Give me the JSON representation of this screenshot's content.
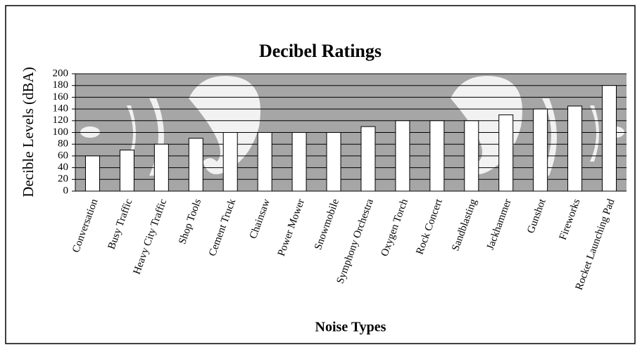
{
  "chart_data": {
    "type": "bar",
    "title": "Decibel Ratings",
    "x_label": "Noise Types",
    "y_label": "Decible Levels (dBA)",
    "categories": [
      "Conversation",
      "Busy Traffic",
      "Heavy City Traffic",
      "Shop Tools",
      "Cement Truck",
      "Chainsaw",
      "Power Mower",
      "Snowmobile",
      "Symphony Orchestra",
      "Oxygen Torch",
      "Rock Concert",
      "Sandblasting",
      "Jackhammer",
      "Gunshot",
      "Fireworks",
      "Rocket Launching Pad"
    ],
    "values": [
      60,
      70,
      80,
      90,
      100,
      100,
      100,
      100,
      110,
      120,
      120,
      120,
      130,
      140,
      145,
      180
    ],
    "color": "#ffffff",
    "ylim": [
      0,
      200
    ],
    "yticks": [
      0,
      20,
      40,
      60,
      80,
      100,
      120,
      140,
      160,
      180,
      200
    ],
    "grid": true
  }
}
